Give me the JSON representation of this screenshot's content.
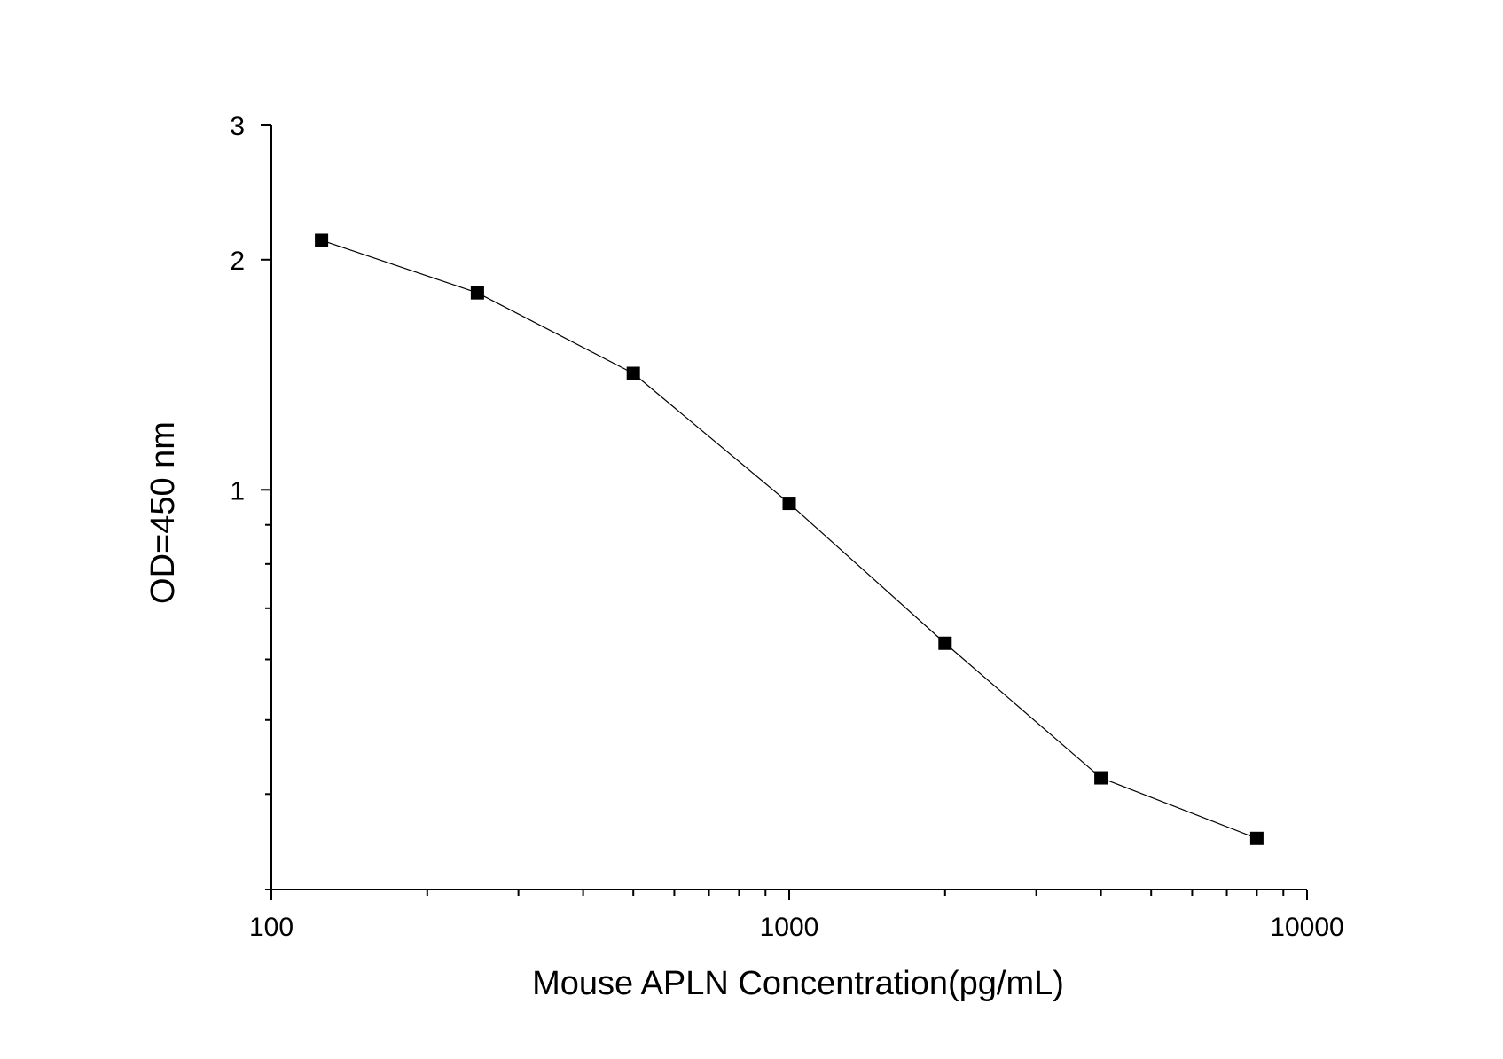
{
  "chart_data": {
    "type": "line",
    "xlabel": "Mouse APLN  Concentration(pg/mL)",
    "ylabel": "OD=450 nm",
    "x_scale": "log",
    "y_scale": "log",
    "xlim": [
      100,
      10000
    ],
    "ylim": [
      0.3,
      3
    ],
    "x_ticks": [
      {
        "value": 100,
        "label": "100"
      },
      {
        "value": 1000,
        "label": "1000"
      },
      {
        "value": 10000,
        "label": "10000"
      }
    ],
    "y_ticks": [
      {
        "value": 1,
        "label": "1"
      },
      {
        "value": 2,
        "label": "2"
      },
      {
        "value": 3,
        "label": "3"
      }
    ],
    "grid": false,
    "legend": "none",
    "marker": "square",
    "color": "#000000",
    "series": [
      {
        "x": [
          125,
          250,
          500,
          1000,
          2000,
          4000,
          8000
        ],
        "y": [
          2.12,
          1.81,
          1.42,
          0.96,
          0.63,
          0.42,
          0.35
        ]
      }
    ]
  }
}
